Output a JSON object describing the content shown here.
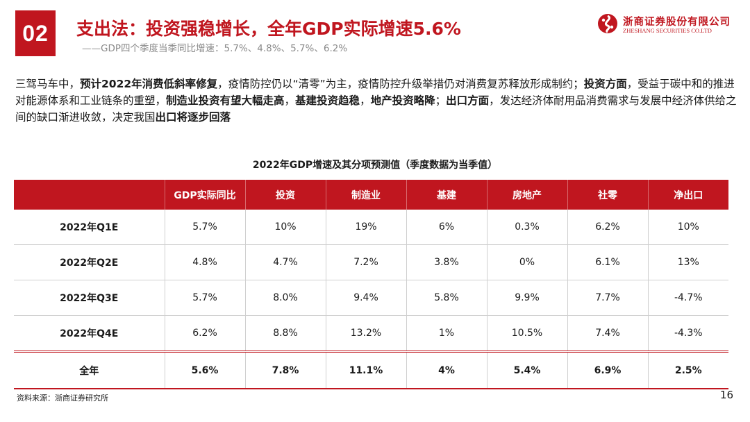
{
  "header": {
    "section_number": "02",
    "title": "支出法：投资强稳增长，全年GDP实际增速5.6%",
    "subtitle": "——GDP四个季度当季同比增速：5.7%、4.8%、5.7%、6.2%"
  },
  "logo": {
    "name_cn": "浙商证券股份有限公司",
    "name_en": "ZHESHANG SECURITIES CO.LTD",
    "color": "#c0161f"
  },
  "paragraph": {
    "p1": "三驾马车中，",
    "b1": "预计2022年消费低斜率修复",
    "p2": "，疫情防控仍以“清零”为主，疫情防控升级举措仍对消费复苏释放形成制约；",
    "b2": "投资方面",
    "p3": "，受益于碳中和的推进对能源体系和工业链条的重塑，",
    "b3": "制造业投资有望大幅走高",
    "p4": "，",
    "b4": "基建投资趋稳",
    "p5": "，",
    "b5": "地产投资略降",
    "p6": "；",
    "b6": "出口方面",
    "p7": "，发达经济体耐用品消费需求与发展中经济体供给之间的缺口渐进收敛，决定我国",
    "b7": "出口将逐步回落"
  },
  "table": {
    "title": "2022年GDP增速及其分项预测值（季度数据为当季值）",
    "headers": [
      "",
      "GDP实际同比",
      "投资",
      "制造业",
      "基建",
      "房地产",
      "社零",
      "净出口"
    ],
    "rows": [
      {
        "label": "2022年Q1E",
        "values": [
          "5.7%",
          "10%",
          "19%",
          "6%",
          "0.3%",
          "6.2%",
          "10%"
        ]
      },
      {
        "label": "2022年Q2E",
        "values": [
          "4.8%",
          "4.7%",
          "7.2%",
          "3.8%",
          "0%",
          "6.1%",
          "13%"
        ]
      },
      {
        "label": "2022年Q3E",
        "values": [
          "5.7%",
          "8.0%",
          "9.4%",
          "5.8%",
          "9.9%",
          "7.7%",
          "-4.7%"
        ]
      },
      {
        "label": "2022年Q4E",
        "values": [
          "6.2%",
          "8.8%",
          "13.2%",
          "1%",
          "10.5%",
          "7.4%",
          "-4.3%"
        ]
      },
      {
        "label": "全年",
        "values": [
          "5.6%",
          "7.8%",
          "11.1%",
          "4%",
          "5.4%",
          "6.9%",
          "2.5%"
        ]
      }
    ]
  },
  "footer": {
    "source": "资料来源：浙商证券研究所",
    "page_number": "16"
  },
  "colors": {
    "accent": "#c0161f",
    "subtitle_gray": "#8a8a8a"
  }
}
